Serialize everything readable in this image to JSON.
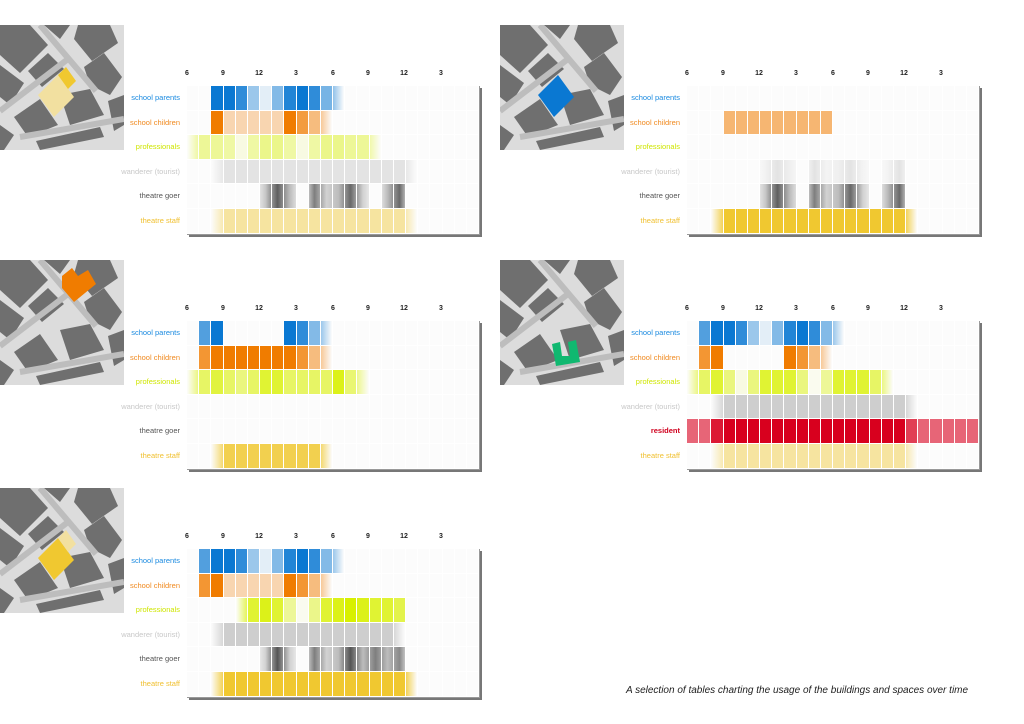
{
  "caption": "A selection of tables charting the usage of the buildings and spaces over time",
  "time_ticks": [
    "6",
    "9",
    "12",
    "3",
    "6",
    "9",
    "12",
    "3"
  ],
  "colors": {
    "school parents": {
      "fill": "#0a78d2",
      "label": "#1a8ae0"
    },
    "school children": {
      "fill": "#f07c00",
      "label": "#f08a20"
    },
    "professionals": {
      "fill": "#d8f000",
      "label": "#cfe600"
    },
    "wanderer (tourist)": {
      "fill": "#a8a8a8",
      "label": "#c8c8c8"
    },
    "theatre goer": {
      "fill": "#2a2a2a",
      "label": "#555555"
    },
    "theatre staff": {
      "fill": "#f0c830",
      "label": "#f0c030"
    },
    "resident": {
      "fill": "#d8001e",
      "label": "#d0001e"
    }
  },
  "panels": [
    {
      "highlight": [
        {
          "shape": "square",
          "color": "#f2e0a0"
        },
        {
          "shape": "small",
          "color": "#f0c830"
        }
      ],
      "rows": [
        {
          "label": "school parents",
          "values": [
            0,
            0,
            1,
            1,
            0.85,
            0.4,
            0.1,
            0.5,
            0.9,
            1,
            0.85,
            0.55,
            0.25,
            0,
            0,
            0,
            0,
            0,
            0,
            0,
            0,
            0,
            0,
            0
          ]
        },
        {
          "label": "school children",
          "values": [
            0,
            0,
            1,
            0.3,
            0.3,
            0.3,
            0.3,
            0.3,
            1,
            0.75,
            0.5,
            0.2,
            0,
            0,
            0,
            0,
            0,
            0,
            0,
            0,
            0,
            0,
            0,
            0
          ]
        },
        {
          "label": "professionals",
          "values": [
            0.35,
            0.4,
            0.4,
            0.35,
            0.1,
            0.35,
            0.45,
            0.45,
            0.35,
            0.1,
            0.35,
            0.45,
            0.45,
            0.4,
            0.4,
            0.2,
            0,
            0,
            0,
            0,
            0,
            0,
            0,
            0
          ]
        },
        {
          "label": "wanderer (tourist)",
          "values": [
            0,
            0,
            0.2,
            0.3,
            0.3,
            0.3,
            0.3,
            0.3,
            0.3,
            0.3,
            0.3,
            0.3,
            0.3,
            0.3,
            0.3,
            0.3,
            0.3,
            0.3,
            0.15,
            0,
            0,
            0,
            0,
            0
          ]
        },
        {
          "label": "theatre goer",
          "values": [
            0,
            0,
            0,
            0,
            0,
            0,
            0.25,
            0.75,
            0.3,
            0,
            0.6,
            0.2,
            0.3,
            0.7,
            0.2,
            0,
            0.3,
            0.7,
            0,
            0,
            0,
            0,
            0,
            0
          ]
        },
        {
          "label": "theatre staff",
          "values": [
            0,
            0,
            0.15,
            0.45,
            0.45,
            0.45,
            0.45,
            0.45,
            0.45,
            0.45,
            0.45,
            0.45,
            0.45,
            0.45,
            0.45,
            0.45,
            0.45,
            0.45,
            0.2,
            0,
            0,
            0,
            0,
            0
          ]
        }
      ]
    },
    {
      "highlight": [
        {
          "shape": "square",
          "color": "#0a78d2"
        }
      ],
      "rows": [
        {
          "label": "school parents",
          "values": [
            0,
            0,
            0,
            0,
            0,
            0,
            0,
            0,
            0,
            0,
            0,
            0,
            0,
            0,
            0,
            0,
            0,
            0,
            0,
            0,
            0,
            0,
            0,
            0
          ]
        },
        {
          "label": "school children",
          "values": [
            0,
            0,
            0,
            0.55,
            0.55,
            0.55,
            0.55,
            0.55,
            0.55,
            0.55,
            0.55,
            0.55,
            0,
            0,
            0,
            0,
            0,
            0,
            0,
            0,
            0,
            0,
            0,
            0
          ]
        },
        {
          "label": "professionals",
          "values": [
            0,
            0,
            0,
            0,
            0,
            0,
            0,
            0,
            0,
            0,
            0,
            0,
            0,
            0,
            0,
            0,
            0,
            0,
            0,
            0,
            0,
            0,
            0,
            0
          ]
        },
        {
          "label": "wanderer (tourist)",
          "values": [
            0,
            0,
            0,
            0,
            0,
            0,
            0.12,
            0.3,
            0.15,
            0,
            0.3,
            0.1,
            0.15,
            0.3,
            0.1,
            0,
            0.1,
            0.3,
            0,
            0,
            0,
            0,
            0,
            0
          ]
        },
        {
          "label": "theatre goer",
          "values": [
            0,
            0,
            0,
            0,
            0,
            0,
            0.25,
            0.75,
            0.3,
            0,
            0.6,
            0.2,
            0.3,
            0.7,
            0.2,
            0,
            0.3,
            0.7,
            0,
            0,
            0,
            0,
            0,
            0
          ]
        },
        {
          "label": "theatre staff",
          "values": [
            0,
            0,
            0.3,
            1,
            1,
            1,
            1,
            1,
            1,
            1,
            1,
            1,
            1,
            1,
            1,
            1,
            1,
            1,
            0.3,
            0,
            0,
            0,
            0,
            0
          ]
        }
      ]
    },
    {
      "highlight": [
        {
          "shape": "lshape",
          "color": "#f07c00"
        }
      ],
      "rows": [
        {
          "label": "school parents",
          "values": [
            0,
            0.7,
            1,
            0,
            0,
            0,
            0,
            0,
            1,
            0.85,
            0.5,
            0.2,
            0,
            0,
            0,
            0,
            0,
            0,
            0,
            0,
            0,
            0,
            0,
            0
          ]
        },
        {
          "label": "school children",
          "values": [
            0,
            0.8,
            1,
            1,
            1,
            1,
            1,
            1,
            1,
            0.8,
            0.5,
            0.2,
            0,
            0,
            0,
            0,
            0,
            0,
            0,
            0,
            0,
            0,
            0,
            0
          ]
        },
        {
          "label": "professionals",
          "values": [
            0.4,
            0.6,
            0.75,
            0.6,
            0.5,
            0.6,
            0.8,
            0.8,
            0.6,
            0.6,
            0.6,
            0.6,
            0.9,
            0.55,
            0.3,
            0,
            0,
            0,
            0,
            0,
            0,
            0,
            0,
            0
          ]
        },
        {
          "label": "wanderer (tourist)",
          "values": [
            0,
            0,
            0,
            0,
            0,
            0,
            0,
            0,
            0,
            0,
            0,
            0,
            0,
            0,
            0,
            0,
            0,
            0,
            0,
            0,
            0,
            0,
            0,
            0
          ]
        },
        {
          "label": "theatre goer",
          "values": [
            0,
            0,
            0,
            0,
            0,
            0,
            0,
            0,
            0,
            0,
            0,
            0,
            0,
            0,
            0,
            0,
            0,
            0,
            0,
            0,
            0,
            0,
            0,
            0
          ]
        },
        {
          "label": "theatre staff",
          "values": [
            0,
            0,
            0.2,
            0.85,
            0.85,
            0.85,
            0.85,
            0.85,
            0.85,
            0.85,
            0.85,
            0.3,
            0,
            0,
            0,
            0,
            0,
            0,
            0,
            0,
            0,
            0,
            0,
            0
          ]
        }
      ]
    },
    {
      "highlight": [
        {
          "shape": "ushape",
          "color": "#10b870"
        }
      ],
      "rows": [
        {
          "label": "school parents",
          "values": [
            0,
            0.7,
            1,
            1,
            0.85,
            0.4,
            0.1,
            0.5,
            0.9,
            1,
            0.85,
            0.5,
            0.2,
            0,
            0,
            0,
            0,
            0,
            0,
            0,
            0,
            0,
            0,
            0
          ]
        },
        {
          "label": "school children",
          "values": [
            0,
            0.8,
            1,
            0,
            0,
            0,
            0,
            0,
            1,
            0.8,
            0.5,
            0.2,
            0,
            0,
            0,
            0,
            0,
            0,
            0,
            0,
            0,
            0,
            0,
            0
          ]
        },
        {
          "label": "professionals",
          "values": [
            0.3,
            0.6,
            0.8,
            0.5,
            0.1,
            0.5,
            0.8,
            0.8,
            0.8,
            0.5,
            0.05,
            0.4,
            0.8,
            0.8,
            0.8,
            0.6,
            0.3,
            0,
            0,
            0,
            0,
            0,
            0,
            0
          ]
        },
        {
          "label": "wanderer (tourist)",
          "values": [
            0,
            0,
            0.2,
            0.55,
            0.55,
            0.55,
            0.55,
            0.55,
            0.55,
            0.55,
            0.55,
            0.55,
            0.55,
            0.55,
            0.55,
            0.55,
            0.55,
            0.55,
            0.2,
            0,
            0,
            0,
            0,
            0
          ]
        },
        {
          "label": "resident",
          "values": [
            0.6,
            0.6,
            0.9,
            1,
            1,
            1,
            1,
            1,
            1,
            1,
            1,
            1,
            1,
            1,
            1,
            1,
            1,
            1,
            0.75,
            0.6,
            0.6,
            0.6,
            0.6,
            0.6
          ]
        },
        {
          "label": "theatre staff",
          "values": [
            0,
            0,
            0.15,
            0.45,
            0.45,
            0.45,
            0.45,
            0.45,
            0.45,
            0.45,
            0.45,
            0.45,
            0.45,
            0.45,
            0.45,
            0.45,
            0.45,
            0.45,
            0.2,
            0,
            0,
            0,
            0,
            0
          ]
        }
      ]
    },
    {
      "highlight": [
        {
          "shape": "square",
          "color": "#f0c830"
        },
        {
          "shape": "small",
          "color": "#f2e0a0"
        }
      ],
      "rows": [
        {
          "label": "school parents",
          "values": [
            0,
            0.7,
            1,
            1,
            0.85,
            0.4,
            0.1,
            0.5,
            0.9,
            1,
            0.85,
            0.5,
            0.2,
            0,
            0,
            0,
            0,
            0,
            0,
            0,
            0,
            0,
            0,
            0
          ]
        },
        {
          "label": "school children",
          "values": [
            0,
            0.8,
            1,
            0.3,
            0.3,
            0.3,
            0.3,
            0.3,
            1,
            0.8,
            0.5,
            0.2,
            0,
            0,
            0,
            0,
            0,
            0,
            0,
            0,
            0,
            0,
            0,
            0
          ]
        },
        {
          "label": "professionals",
          "values": [
            0,
            0,
            0,
            0,
            0.3,
            0.8,
            0.9,
            0.8,
            0.4,
            0.05,
            0.45,
            0.8,
            0.9,
            1,
            0.9,
            0.8,
            0.8,
            0.7,
            0,
            0,
            0,
            0,
            0,
            0
          ]
        },
        {
          "label": "wanderer (tourist)",
          "values": [
            0,
            0,
            0.25,
            0.55,
            0.55,
            0.55,
            0.55,
            0.55,
            0.55,
            0.55,
            0.55,
            0.55,
            0.55,
            0.55,
            0.55,
            0.55,
            0.55,
            0.25,
            0,
            0,
            0,
            0,
            0,
            0
          ]
        },
        {
          "label": "theatre goer",
          "values": [
            0,
            0,
            0,
            0,
            0,
            0,
            0.2,
            0.8,
            0.2,
            0,
            0.6,
            0.2,
            0.3,
            0.8,
            0.3,
            0.6,
            0.3,
            0.55,
            0,
            0,
            0,
            0,
            0,
            0
          ]
        },
        {
          "label": "theatre staff",
          "values": [
            0,
            0,
            0.2,
            1,
            1,
            1,
            1,
            1,
            1,
            1,
            1,
            1,
            1,
            1,
            1,
            1,
            1,
            1,
            0.3,
            0,
            0,
            0,
            0,
            0
          ]
        }
      ]
    }
  ]
}
